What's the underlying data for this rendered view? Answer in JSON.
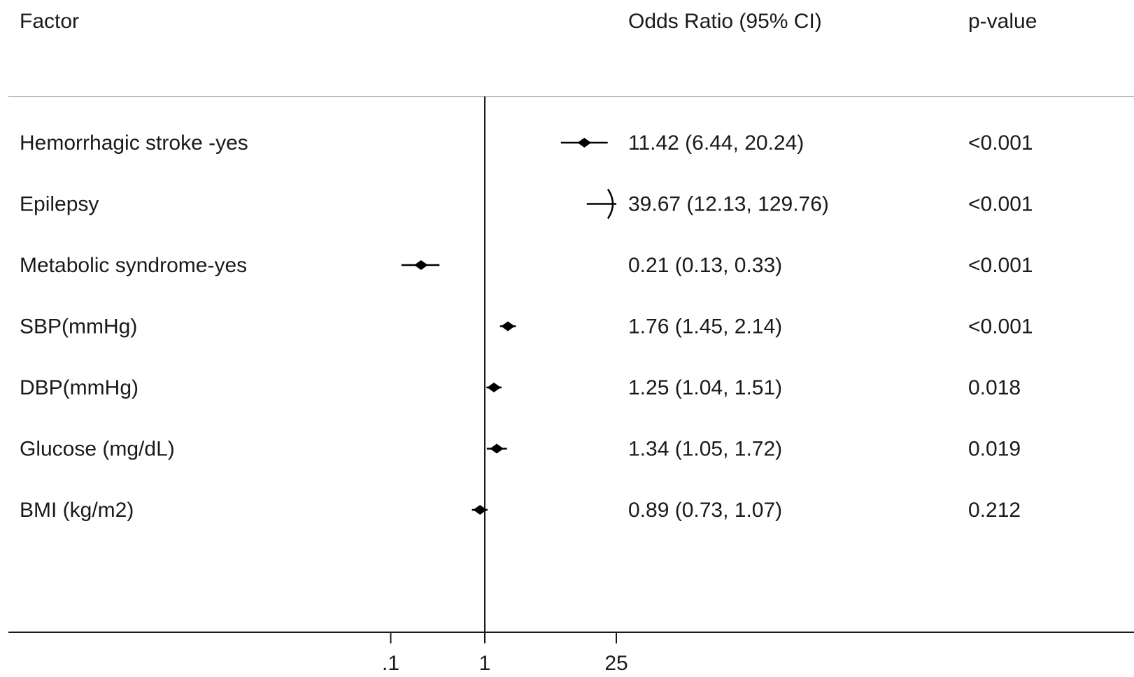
{
  "chart_data": {
    "type": "forest",
    "headers": {
      "factor": "Factor",
      "estimate": "Odds Ratio (95% CI)",
      "pvalue": "p-value"
    },
    "x_scale": "log",
    "xlim": [
      0.035,
      25
    ],
    "reference_line": 1,
    "x_ticks": [
      {
        "value": 0.1,
        "label": ".1"
      },
      {
        "value": 1,
        "label": "1"
      },
      {
        "value": 25,
        "label": "25"
      }
    ],
    "rows": [
      {
        "factor": "Hemorrhagic stroke -yes",
        "or": 11.42,
        "lower": 6.44,
        "upper": 20.24,
        "or_text": "11.42 (6.44, 20.24)",
        "p": "<0.001"
      },
      {
        "factor": "Epilepsy",
        "or": 39.67,
        "lower": 12.13,
        "upper": 129.76,
        "or_text": "39.67 (12.13, 129.76)",
        "p": "<0.001"
      },
      {
        "factor": "Metabolic syndrome-yes",
        "or": 0.21,
        "lower": 0.13,
        "upper": 0.33,
        "or_text": "0.21 (0.13, 0.33)",
        "p": "<0.001"
      },
      {
        "factor": "SBP(mmHg)",
        "or": 1.76,
        "lower": 1.45,
        "upper": 2.14,
        "or_text": "1.76 (1.45, 2.14)",
        "p": "<0.001"
      },
      {
        "factor": "DBP(mmHg)",
        "or": 1.25,
        "lower": 1.04,
        "upper": 1.51,
        "or_text": "1.25 (1.04, 1.51)",
        "p": "0.018"
      },
      {
        "factor": "Glucose (mg/dL)",
        "or": 1.34,
        "lower": 1.05,
        "upper": 1.72,
        "or_text": "1.34 (1.05, 1.72)",
        "p": "0.019"
      },
      {
        "factor": "BMI (kg/m2)",
        "or": 0.89,
        "lower": 0.73,
        "upper": 1.07,
        "or_text": "0.89 (0.73, 1.07)",
        "p": "0.212"
      }
    ],
    "colors": {
      "text": "#1a1a1a",
      "rule": "#bfbfbf",
      "axis": "#1a1a1a",
      "marker": "#000000"
    }
  }
}
